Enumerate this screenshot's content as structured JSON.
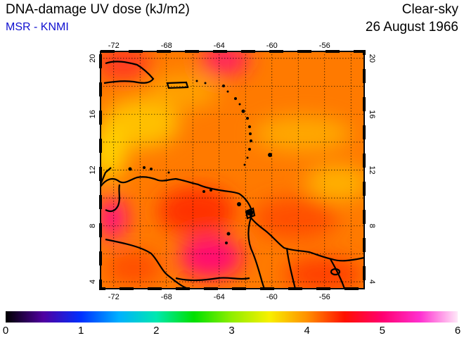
{
  "title": "DNA-damage UV dose (kJ/m2)",
  "source": "MSR - KNMI",
  "sky": "Clear-sky",
  "date": "26 August 1966",
  "map": {
    "lon_range": [
      -73,
      -53
    ],
    "lat_range": [
      3.5,
      20.5
    ],
    "lon_ticks": [
      "-72",
      "-68",
      "-64",
      "-60",
      "-56"
    ],
    "lat_ticks": [
      "4",
      "8",
      "12",
      "16",
      "20"
    ],
    "lon_tick_values": [
      -72,
      -68,
      -64,
      -60,
      -56
    ],
    "lat_tick_values": [
      4,
      8,
      12,
      16,
      20
    ],
    "grid_lines": true,
    "base_color": "#ff7a00"
  },
  "colorbar": {
    "min": 0,
    "max": 6,
    "labels": [
      "0",
      "1",
      "2",
      "3",
      "4",
      "5",
      "6"
    ],
    "stops": [
      "#000000",
      "#5000a0",
      "#0030ff",
      "#00b0ff",
      "#00e8b0",
      "#00e000",
      "#90ee00",
      "#f8f000",
      "#ff9000",
      "#ff1000",
      "#ff0070",
      "#ff30d0",
      "#ffe8f8"
    ]
  }
}
